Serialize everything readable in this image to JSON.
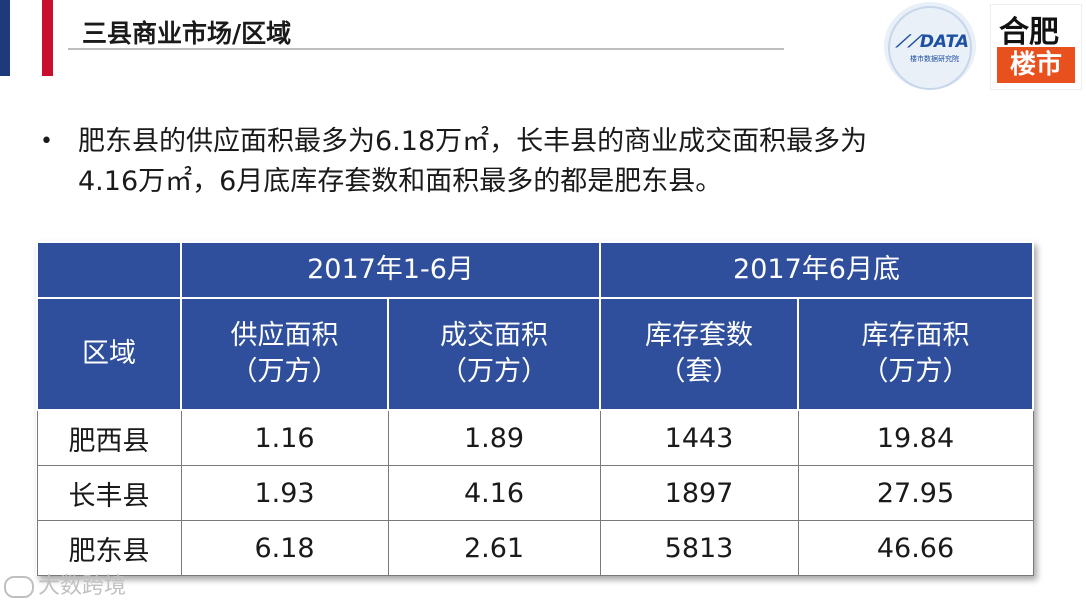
{
  "title": "三县商业市场/区域",
  "logos": {
    "data_word": "DATA",
    "data_sub": "楼市数据研究院",
    "city_line1": "合肥",
    "city_line2": "楼市"
  },
  "summary": {
    "bullet": "•",
    "line1": "肥东县的供应面积最多为6.18万㎡，长丰县的商业成交面积最多为",
    "line2": "4.16万㎡，6月底库存套数和面积最多的都是肥东县。"
  },
  "table": {
    "group_headers": {
      "period_1": "2017年1-6月",
      "period_2": "2017年6月底"
    },
    "region_header": "区域",
    "columns": [
      {
        "name": "供应面积",
        "unit": "（万方）"
      },
      {
        "name": "成交面积",
        "unit": "（万方）"
      },
      {
        "name": "库存套数",
        "unit": "（套）"
      },
      {
        "name": "库存面积",
        "unit": "（万方）"
      }
    ],
    "rows": [
      {
        "region": "肥西县",
        "supply": "1.16",
        "deal": "1.89",
        "stock_units": "1443",
        "stock_area": "19.84"
      },
      {
        "region": "长丰县",
        "supply": "1.93",
        "deal": "4.16",
        "stock_units": "1897",
        "stock_area": "27.95"
      },
      {
        "region": "肥东县",
        "supply": "6.18",
        "deal": "2.61",
        "stock_units": "5813",
        "stock_area": "46.66"
      }
    ]
  },
  "watermark": "大数跨境",
  "colors": {
    "header_blue": "#2f4f9c",
    "flag_blue": "#1f3a7a",
    "flag_red": "#c8102e",
    "logo_orange": "#e8501e"
  }
}
